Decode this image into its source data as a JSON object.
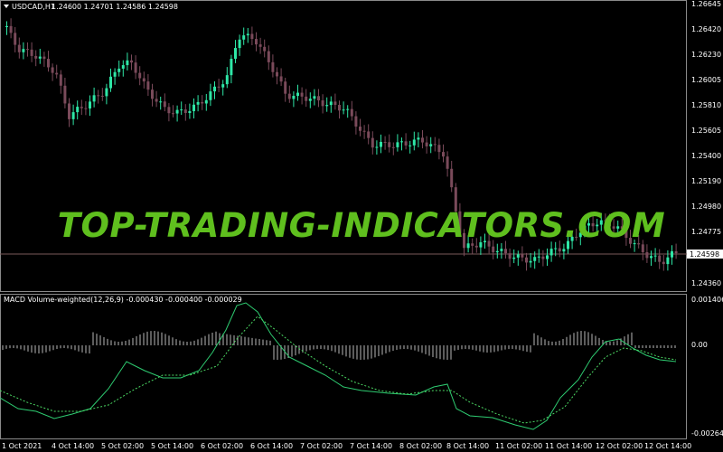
{
  "main_chart": {
    "symbol_label": "USDCAD,H1",
    "ohlc_text": "1.24600 1.24701 1.24586 1.24598",
    "price_ticks": [
      "1.26645",
      "1.26420",
      "1.26230",
      "1.26005",
      "1.25810",
      "1.25605",
      "1.25400",
      "1.25190",
      "1.24980",
      "1.24775",
      "1.24360"
    ],
    "current_price": "1.24598"
  },
  "indicator": {
    "title": "MACD Volume-weighted(12,26,9) -0.000430 -0.000400 -0.000029",
    "ticks": [
      "0.001406",
      "0.00",
      "-0.002641"
    ]
  },
  "time_axis": {
    "labels": [
      "1 Oct 2021",
      "4 Oct 14:00",
      "5 Oct 02:00",
      "5 Oct 14:00",
      "6 Oct 02:00",
      "6 Oct 14:00",
      "7 Oct 02:00",
      "7 Oct 14:00",
      "8 Oct 02:00",
      "8 Oct 14:00",
      "11 Oct 02:00",
      "11 Oct 14:00",
      "12 Oct 02:00",
      "12 Oct 14:00"
    ]
  },
  "watermark": "TOP-TRADING-INDICATORS.COM",
  "colors": {
    "bull": "#2ee6a6",
    "bear": "#7a4a5a",
    "macd_line": "#2ecc71",
    "signal_line": "#4cd964",
    "histogram": "#b8b8b8",
    "watermark": "#5fbf1e"
  }
}
